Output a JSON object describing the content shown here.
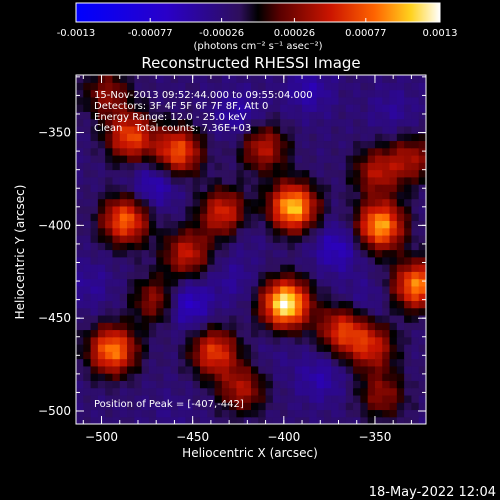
{
  "colorbar": {
    "ticks": [
      "-0.0013",
      "-0.00077",
      "-0.00026",
      "0.00026",
      "0.00077",
      "0.0013"
    ],
    "units": "(photons cm⁻² s⁻¹ asec⁻²)"
  },
  "chart_data": {
    "type": "heatmap",
    "title": "Reconstructed RHESSI Image",
    "xlabel": "Heliocentric X (arcsec)",
    "ylabel": "Heliocentric Y (arcsec)",
    "xlim": [
      -514,
      -322
    ],
    "ylim": [
      -507,
      -319
    ],
    "x_ticks": [
      "-500",
      "-450",
      "-400",
      "-350"
    ],
    "y_ticks": [
      "-350",
      "-400",
      "-450",
      "-500"
    ],
    "colorbar_range": [
      -0.0013,
      0.0013
    ],
    "info": [
      "15-Nov-2013 09:52:44.000 to 09:55:04.000",
      "Detectors: 3F 4F 5F 6F 7F 8F, Att 0",
      "Energy Range: 12.0 - 25.0 keV",
      "Clean    Total counts: 7.36E+03"
    ],
    "peak_label": "Position of Peak = [-407,-442]",
    "peak": [
      -407,
      -442
    ],
    "hotspots": [
      {
        "x": -399,
        "y": -442,
        "value": 0.0013
      },
      {
        "x": -395,
        "y": -390,
        "value": 0.0011
      },
      {
        "x": -347,
        "y": -400,
        "value": 0.001
      },
      {
        "x": -327,
        "y": -432,
        "value": 0.0009
      },
      {
        "x": -494,
        "y": -467,
        "value": 0.0009
      },
      {
        "x": -487,
        "y": -397,
        "value": 0.0008
      },
      {
        "x": -458,
        "y": -360,
        "value": 0.00075
      },
      {
        "x": -433,
        "y": -393,
        "value": 0.0006
      },
      {
        "x": -484,
        "y": -352,
        "value": 0.0007
      },
      {
        "x": -438,
        "y": -468,
        "value": 0.00065
      },
      {
        "x": -368,
        "y": -456,
        "value": 0.0006
      },
      {
        "x": -453,
        "y": -415,
        "value": 0.0005
      },
      {
        "x": -411,
        "y": -358,
        "value": 0.00045
      },
      {
        "x": -352,
        "y": -465,
        "value": 0.0005
      },
      {
        "x": -423,
        "y": -488,
        "value": 0.0004
      },
      {
        "x": -349,
        "y": -371,
        "value": 0.0004
      },
      {
        "x": -330,
        "y": -364,
        "value": 0.00035
      },
      {
        "x": -346,
        "y": -491,
        "value": 0.0003
      },
      {
        "x": -470,
        "y": -440,
        "value": 0.00035
      },
      {
        "x": -497,
        "y": -329,
        "value": 0.0003
      }
    ],
    "coolspots": [
      {
        "x": -471,
        "y": -378,
        "value": -0.0006
      },
      {
        "x": -371,
        "y": -412,
        "value": -0.0006
      },
      {
        "x": -453,
        "y": -442,
        "value": -0.0007
      },
      {
        "x": -425,
        "y": -340,
        "value": -0.0005
      },
      {
        "x": -386,
        "y": -327,
        "value": -0.0005
      },
      {
        "x": -340,
        "y": -338,
        "value": -0.0004
      },
      {
        "x": -380,
        "y": -482,
        "value": -0.0005
      },
      {
        "x": -506,
        "y": -432,
        "value": -0.0004
      },
      {
        "x": -428,
        "y": -429,
        "value": -0.0004
      },
      {
        "x": -356,
        "y": -441,
        "value": -0.0004
      },
      {
        "x": -462,
        "y": -502,
        "value": -0.0003
      },
      {
        "x": -421,
        "y": -402,
        "value": -0.00035
      },
      {
        "x": -404,
        "y": -470,
        "value": -0.0003
      }
    ]
  },
  "timestamp": "18-May-2022 12:04"
}
